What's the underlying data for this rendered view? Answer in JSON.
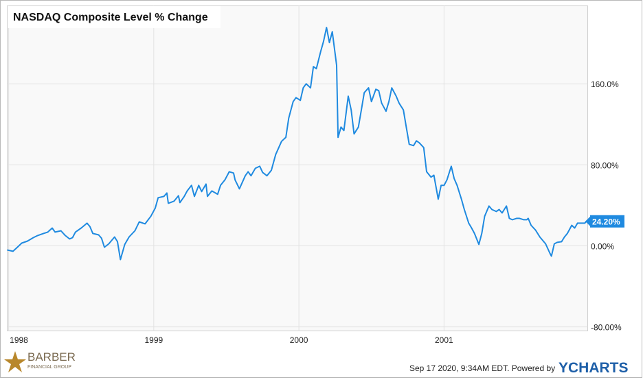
{
  "chart_data": {
    "type": "line",
    "title": "NASDAQ Composite Level % Change",
    "x": [
      1997.99,
      1998.03,
      1998.06,
      1998.09,
      1998.13,
      1998.17,
      1998.2,
      1998.24,
      1998.27,
      1998.3,
      1998.32,
      1998.36,
      1998.39,
      1998.42,
      1998.44,
      1998.46,
      1998.5,
      1998.54,
      1998.56,
      1998.58,
      1998.62,
      1998.64,
      1998.66,
      1998.69,
      1998.73,
      1998.75,
      1998.77,
      1998.8,
      1998.83,
      1998.87,
      1998.9,
      1998.94,
      1998.98,
      1999.01,
      1999.03,
      1999.07,
      1999.09,
      1999.1,
      1999.14,
      1999.17,
      1999.18,
      1999.21,
      1999.23,
      1999.26,
      1999.28,
      1999.31,
      1999.33,
      1999.36,
      1999.37,
      1999.4,
      1999.44,
      1999.46,
      1999.49,
      1999.52,
      1999.55,
      1999.56,
      1999.59,
      1999.63,
      1999.65,
      1999.67,
      1999.7,
      1999.73,
      1999.75,
      1999.78,
      1999.81,
      1999.84,
      1999.88,
      1999.9,
      1999.91,
      1999.93,
      1999.96,
      1999.98,
      2000.01,
      2000.03,
      2000.05,
      2000.08,
      2000.1,
      2000.12,
      2000.15,
      2000.17,
      2000.19,
      2000.21,
      2000.23,
      2000.26,
      2000.27,
      2000.29,
      2000.31,
      2000.34,
      2000.36,
      2000.38,
      2000.41,
      2000.43,
      2000.45,
      2000.48,
      2000.5,
      2000.53,
      2000.55,
      2000.57,
      2000.6,
      2000.62,
      2000.64,
      2000.67,
      2000.69,
      2000.72,
      2000.74,
      2000.76,
      2000.79,
      2000.81,
      2000.83,
      2000.86,
      2000.88,
      2000.91,
      2000.93,
      2000.96,
      2000.98,
      2001.0,
      2001.02,
      2001.05,
      2001.07,
      2001.09,
      2001.12,
      2001.14,
      2001.17,
      2001.19,
      2001.21,
      2001.24,
      2001.26,
      2001.28,
      2001.31,
      2001.33,
      2001.36,
      2001.38,
      2001.4,
      2001.43,
      2001.45,
      2001.47,
      2001.5,
      2001.52,
      2001.55,
      2001.57,
      2001.58,
      2001.6,
      2001.63,
      2001.66,
      2001.7,
      2001.73,
      2001.74,
      2001.76,
      2001.78,
      2001.81,
      2001.83,
      2001.85,
      2001.88,
      2001.9,
      2001.92,
      2001.95,
      2001.97,
      2001.98
    ],
    "series": [
      {
        "name": "NASDAQ Composite Level % Change",
        "color": "#1f8ae0",
        "end_label": "24.20%",
        "values": [
          -4.1,
          -5.4,
          -1.4,
          2.7,
          4.7,
          8.1,
          10.2,
          12.2,
          13.6,
          17.6,
          13.6,
          14.9,
          10.2,
          6.8,
          8.1,
          13.6,
          17.6,
          22.4,
          19.0,
          12.2,
          10.8,
          7.5,
          -1.4,
          2.0,
          8.8,
          4.1,
          -13.6,
          1.4,
          8.8,
          14.9,
          23.7,
          21.7,
          29.2,
          37.3,
          47.5,
          48.8,
          52.2,
          42.0,
          44.1,
          49.5,
          42.7,
          48.8,
          54.2,
          59.7,
          48.8,
          59.7,
          53.6,
          61.0,
          48.8,
          54.2,
          50.9,
          59.7,
          65.1,
          73.2,
          71.9,
          65.1,
          56.3,
          69.2,
          73.2,
          69.2,
          76.6,
          78.6,
          72.5,
          69.2,
          74.6,
          90.2,
          103.1,
          105.8,
          107.1,
          126.1,
          142.4,
          146.4,
          143.7,
          156.0,
          160.0,
          156.0,
          177.0,
          174.9,
          191.9,
          202.0,
          215.6,
          200.7,
          211.5,
          178.3,
          107.1,
          117.3,
          113.9,
          147.8,
          134.2,
          110.5,
          117.3,
          134.2,
          151.2,
          156.0,
          142.4,
          154.6,
          153.2,
          141.0,
          132.9,
          142.4,
          156.0,
          147.8,
          141.0,
          134.2,
          117.3,
          100.3,
          99.0,
          103.7,
          101.7,
          97.0,
          73.2,
          67.8,
          69.8,
          46.1,
          59.7,
          59.7,
          65.1,
          78.6,
          66.4,
          59.7,
          46.1,
          35.9,
          22.4,
          17.6,
          12.2,
          1.4,
          12.2,
          29.2,
          39.3,
          35.9,
          33.9,
          35.9,
          32.5,
          39.3,
          27.1,
          25.8,
          27.1,
          27.1,
          25.8,
          25.8,
          27.1,
          20.3,
          15.6,
          8.8,
          2.0,
          -7.5,
          -10.2,
          2.0,
          3.4,
          4.1,
          8.8,
          12.2,
          20.3,
          17.6,
          22.4,
          22.4,
          22.4,
          24.2
        ]
      }
    ],
    "xlim": [
      1997.99,
      2001.99
    ],
    "xticks": [
      1998,
      1999,
      2000,
      2001
    ],
    "ylim": [
      -84,
      237
    ],
    "yticks": [
      {
        "value": -80,
        "label": "-80.00%"
      },
      {
        "value": 0,
        "label": "0.00%"
      },
      {
        "value": 80,
        "label": "80.00%"
      },
      {
        "value": 160,
        "label": "160.0%"
      }
    ],
    "grid": true
  },
  "footer": {
    "timestamp": "Sep 17 2020, 9:34AM EDT.  Powered by",
    "brand": "YCHARTS",
    "logo_name": "BARBER",
    "logo_sub": "FINANCIAL GROUP"
  }
}
